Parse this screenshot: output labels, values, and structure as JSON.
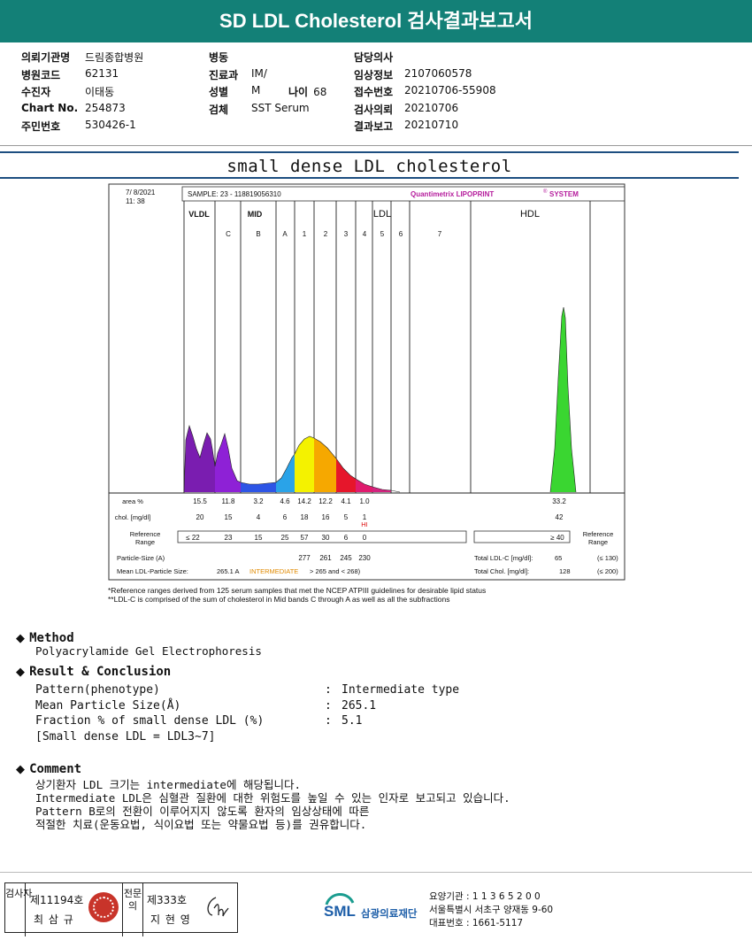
{
  "header": {
    "title": "SD LDL Cholesterol 검사결과보고서"
  },
  "info": {
    "col1": [
      {
        "label": "의뢰기관명",
        "value": "드림종합병원"
      },
      {
        "label": "병원코드",
        "value": "62131"
      },
      {
        "label": "수진자",
        "value": "이태동"
      },
      {
        "label": "Chart No.",
        "value": "254873"
      },
      {
        "label": "주민번호",
        "value": "530426-1"
      }
    ],
    "col2": [
      {
        "label": "병동",
        "value": ""
      },
      {
        "label": "진료과",
        "value": "IM/"
      },
      {
        "label": "성별",
        "value": "M"
      },
      {
        "label": "검체",
        "value": "SST Serum"
      }
    ],
    "age": {
      "label": "나이",
      "value": "68"
    },
    "col3": [
      {
        "label": "담당의사",
        "value": ""
      },
      {
        "label": "임상정보",
        "value": "2107060578"
      },
      {
        "label": "접수번호",
        "value": "20210706-55908"
      },
      {
        "label": "검사의뢰",
        "value": "20210706"
      },
      {
        "label": "결과보고",
        "value": "20210710"
      }
    ]
  },
  "subtitle": "small dense LDL cholesterol",
  "chart_data": {
    "type": "area",
    "date": "7/ 8/2021",
    "time": "11: 38",
    "sample": "SAMPLE:   23 - 118819056310",
    "system": "Quantimetrix LIPOPRINT",
    "system_sup": "®",
    "system_suffix": "SYSTEM",
    "groups": [
      "VLDL",
      "MID",
      "LDL",
      "HDL"
    ],
    "bands": [
      "C",
      "B",
      "A",
      "1",
      "2",
      "3",
      "4",
      "5",
      "6",
      "7"
    ],
    "area_label": "area %",
    "area_values": [
      "15.5",
      "11.8",
      "3.2",
      "4.6",
      "14.2",
      "12.2",
      "4.1",
      "1.0",
      "33.2"
    ],
    "chol_label": "chol. [mg/dl]",
    "chol_values": [
      "20",
      "15",
      "4",
      "6",
      "18",
      "16",
      "5",
      "1",
      "42"
    ],
    "hi_flag": "HI",
    "ref_label": "Reference\nRange",
    "ref_values": [
      "≤ 22",
      "23",
      "15",
      "25",
      "57",
      "30",
      "6",
      "0"
    ],
    "ref_hdl": "≥ 40",
    "ref_label_right": "Reference\nRange",
    "particle_label": "Particle-Size (A)",
    "particle_values": [
      "277",
      "261",
      "245",
      "230"
    ],
    "mean_label": "Mean LDL-Particle Size:",
    "mean_value": "265.1 A",
    "mean_class": "INTERMEDIATE",
    "mean_range": "> 265 and < 268)",
    "total_ldl_label": "Total LDL-C [mg/dl]:",
    "total_ldl_value": "65",
    "total_ldl_ref": "(≤ 130)",
    "total_chol_label": "Total Chol. [mg/dl]:",
    "total_chol_value": "128",
    "total_chol_ref": "(≤ 200)",
    "footnote1": "*Reference ranges derived from 125 serum samples that met the NCEP ATPIII guidelines for desirable lipid status",
    "footnote2": "**LDL-C is comprised of the sum of cholesterol in Mid bands C through A as well as all the subfractions"
  },
  "method": {
    "title": "Method",
    "text": "Polyacrylamide Gel Electrophoresis"
  },
  "result": {
    "title": "Result & Conclusion",
    "rows": [
      {
        "k": "Pattern(phenotype)",
        "v": "Intermediate type"
      },
      {
        "k": "Mean Particle Size(Å)",
        "v": "265.1"
      },
      {
        "k": "Fraction % of small dense LDL (%)",
        "v": "5.1"
      }
    ],
    "note": "[Small dense LDL = LDL3~7]",
    "colon": ":"
  },
  "comment": {
    "title": "Comment",
    "lines": [
      "상기환자 LDL 크기는 intermediate에 해당됩니다.",
      "Intermediate LDL은 심혈관 질환에 대한 위험도를 높일 수 있는 인자로 보고되고 있습니다.",
      "Pattern B로의 전환이 이루어지지 않도록 환자의 임상상태에 따른",
      "적절한 치료(운동요법, 식이요법 또는 약물요법 등)를 권유합니다."
    ]
  },
  "footer": {
    "inspector_label": "검사자",
    "inspector_no": "제11194호",
    "inspector_name": "최 삼 규",
    "confirm_label": "전문의",
    "confirm_no": "제333호",
    "confirm_name": "지 현 영",
    "logo_abbr": "SML",
    "logo_name": "삼광의료재단",
    "code_line": "요양기관 : 1 1 3 6 5 2 0 0",
    "address": "서울특별시 서초구 양재동 9-60",
    "phone": "대표번호 : 1661-5117"
  }
}
